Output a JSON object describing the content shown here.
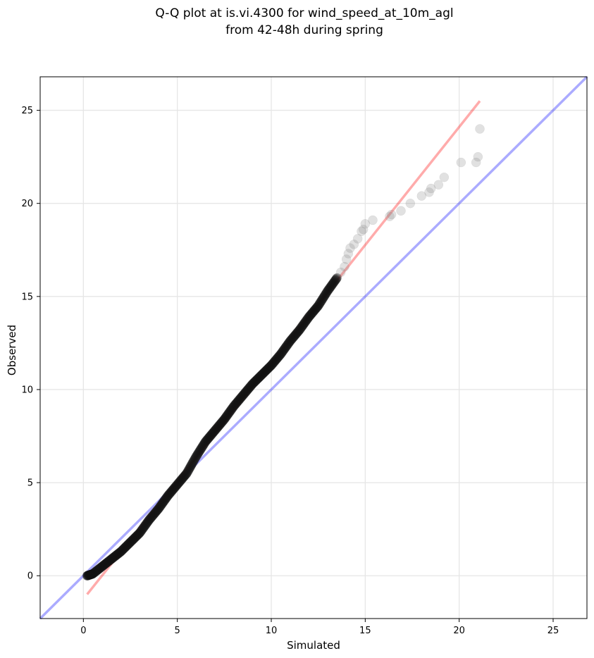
{
  "chart_data": {
    "type": "scatter",
    "title_lines": [
      "Q-Q plot at is.vi.4300 for wind_speed_at_10m_agl",
      "from 42-48h during spring"
    ],
    "xlabel": "Simulated",
    "ylabel": "Observed",
    "xlim": [
      -2.3,
      26.8
    ],
    "ylim": [
      -2.3,
      26.8
    ],
    "xticks": [
      0,
      5,
      10,
      15,
      20,
      25
    ],
    "yticks": [
      0,
      5,
      10,
      15,
      20,
      25
    ],
    "grid": true,
    "reference_line": {
      "name": "1:1",
      "color": "#0000ff",
      "from": [
        -2.3,
        -2.3
      ],
      "to": [
        26.8,
        26.8
      ]
    },
    "fit_line": {
      "color": "#ff0000",
      "from": [
        0.2,
        -1.0
      ],
      "to": [
        21.1,
        25.5
      ]
    },
    "quantile_curve": [
      [
        0.2,
        0.0
      ],
      [
        0.5,
        0.1
      ],
      [
        1.0,
        0.5
      ],
      [
        1.5,
        0.9
      ],
      [
        2.0,
        1.3
      ],
      [
        2.5,
        1.8
      ],
      [
        3.0,
        2.3
      ],
      [
        3.5,
        3.0
      ],
      [
        4.0,
        3.6
      ],
      [
        4.5,
        4.3
      ],
      [
        5.0,
        4.9
      ],
      [
        5.5,
        5.5
      ],
      [
        6.0,
        6.4
      ],
      [
        6.5,
        7.2
      ],
      [
        7.0,
        7.8
      ],
      [
        7.5,
        8.4
      ],
      [
        8.0,
        9.1
      ],
      [
        8.5,
        9.7
      ],
      [
        9.0,
        10.3
      ],
      [
        9.5,
        10.8
      ],
      [
        10.0,
        11.3
      ],
      [
        10.5,
        11.9
      ],
      [
        11.0,
        12.6
      ],
      [
        11.5,
        13.2
      ],
      [
        12.0,
        13.9
      ],
      [
        12.5,
        14.5
      ],
      [
        13.0,
        15.3
      ],
      [
        13.5,
        16.0
      ]
    ],
    "tail_points": [
      [
        13.7,
        16.3
      ],
      [
        13.9,
        16.6
      ],
      [
        14.0,
        17.0
      ],
      [
        14.1,
        17.3
      ],
      [
        14.2,
        17.6
      ],
      [
        14.4,
        17.8
      ],
      [
        14.6,
        18.1
      ],
      [
        14.8,
        18.5
      ],
      [
        14.9,
        18.6
      ],
      [
        15.0,
        18.9
      ],
      [
        15.4,
        19.1
      ],
      [
        16.3,
        19.3
      ],
      [
        16.4,
        19.4
      ],
      [
        16.9,
        19.6
      ],
      [
        17.4,
        20.0
      ],
      [
        18.0,
        20.4
      ],
      [
        18.4,
        20.6
      ],
      [
        18.5,
        20.8
      ],
      [
        18.9,
        21.0
      ],
      [
        19.2,
        21.4
      ],
      [
        20.1,
        22.2
      ],
      [
        20.9,
        22.2
      ],
      [
        21.0,
        22.5
      ],
      [
        21.1,
        24.0
      ]
    ]
  }
}
